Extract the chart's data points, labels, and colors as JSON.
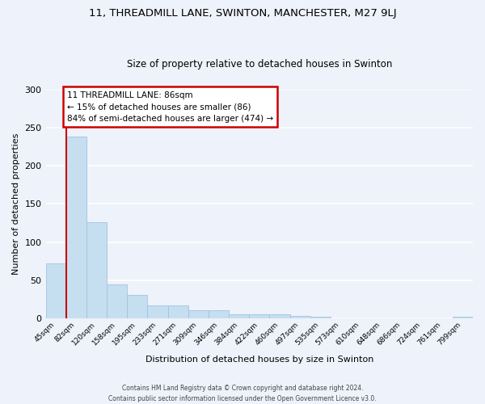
{
  "title": "11, THREADMILL LANE, SWINTON, MANCHESTER, M27 9LJ",
  "subtitle": "Size of property relative to detached houses in Swinton",
  "xlabel": "Distribution of detached houses by size in Swinton",
  "ylabel": "Number of detached properties",
  "bar_labels": [
    "45sqm",
    "82sqm",
    "120sqm",
    "158sqm",
    "195sqm",
    "233sqm",
    "271sqm",
    "309sqm",
    "346sqm",
    "384sqm",
    "422sqm",
    "460sqm",
    "497sqm",
    "535sqm",
    "573sqm",
    "610sqm",
    "648sqm",
    "686sqm",
    "724sqm",
    "761sqm",
    "799sqm"
  ],
  "bar_values": [
    72,
    238,
    126,
    44,
    31,
    17,
    17,
    11,
    11,
    5,
    5,
    5,
    3,
    2,
    0,
    0,
    0,
    0,
    0,
    0,
    2
  ],
  "bar_color": "#c5dff0",
  "bar_edge_color": "#a0c4e0",
  "background_color": "#eef2fa",
  "grid_color": "#ffffff",
  "annotation_title": "11 THREADMILL LANE: 86sqm",
  "annotation_line1": "← 15% of detached houses are smaller (86)",
  "annotation_line2": "84% of semi-detached houses are larger (474) →",
  "annotation_box_facecolor": "#ffffff",
  "annotation_box_edgecolor": "#cc0000",
  "red_line_color": "#cc0000",
  "ylim": [
    0,
    300
  ],
  "yticks": [
    0,
    50,
    100,
    150,
    200,
    250,
    300
  ],
  "footer1": "Contains HM Land Registry data © Crown copyright and database right 2024.",
  "footer2": "Contains public sector information licensed under the Open Government Licence v3.0."
}
